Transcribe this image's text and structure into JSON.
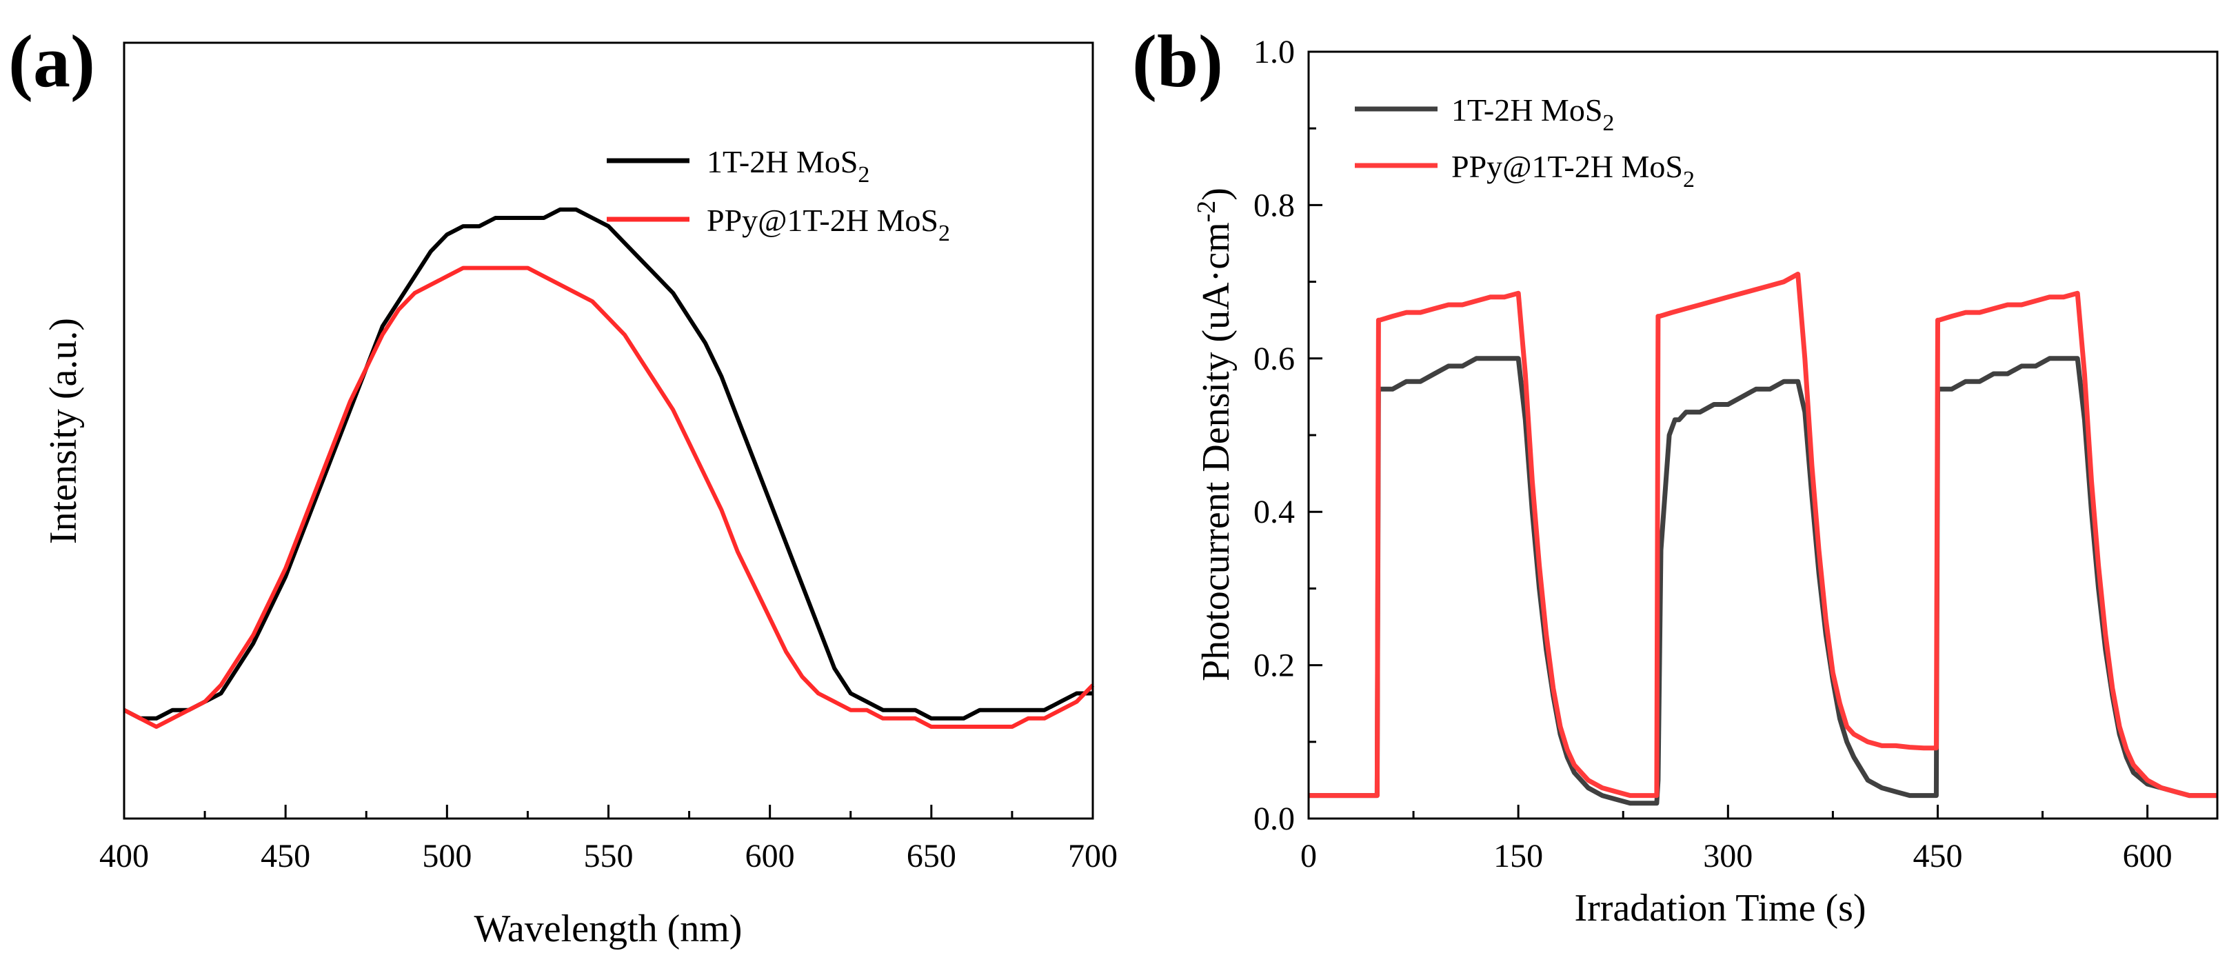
{
  "chart_data": [
    {
      "panel": "(a)",
      "type": "line",
      "xlabel": "Wavelength (nm)",
      "ylabel": "Intensity (a.u.)",
      "xlim": [
        400,
        700
      ],
      "ylim": [
        0,
        1
      ],
      "x_ticks": [
        400,
        450,
        500,
        550,
        600,
        650,
        700
      ],
      "y_ticks_shown": false,
      "grid": false,
      "legend_position": "top-right",
      "series": [
        {
          "name": "1T-2H MoS",
          "name_sub": "2",
          "color": "#000000",
          "x": [
            400,
            405,
            410,
            415,
            420,
            425,
            430,
            435,
            440,
            445,
            450,
            455,
            460,
            465,
            470,
            475,
            480,
            485,
            490,
            495,
            500,
            505,
            510,
            515,
            520,
            525,
            530,
            535,
            540,
            545,
            550,
            555,
            560,
            565,
            570,
            575,
            580,
            585,
            590,
            595,
            600,
            605,
            610,
            615,
            620,
            625,
            630,
            635,
            640,
            645,
            650,
            655,
            660,
            665,
            670,
            675,
            680,
            685,
            690,
            695,
            700
          ],
          "y": [
            0.13,
            0.12,
            0.12,
            0.13,
            0.13,
            0.14,
            0.15,
            0.18,
            0.21,
            0.25,
            0.29,
            0.34,
            0.39,
            0.44,
            0.49,
            0.54,
            0.59,
            0.62,
            0.65,
            0.68,
            0.7,
            0.71,
            0.71,
            0.72,
            0.72,
            0.72,
            0.72,
            0.73,
            0.73,
            0.72,
            0.71,
            0.69,
            0.67,
            0.65,
            0.63,
            0.6,
            0.57,
            0.53,
            0.48,
            0.43,
            0.38,
            0.33,
            0.28,
            0.23,
            0.18,
            0.15,
            0.14,
            0.13,
            0.13,
            0.13,
            0.12,
            0.12,
            0.12,
            0.13,
            0.13,
            0.13,
            0.13,
            0.13,
            0.14,
            0.15,
            0.15
          ]
        },
        {
          "name": "PPy@1T-2H MoS",
          "name_sub": "2",
          "color": "#ff2a2a",
          "x": [
            400,
            405,
            410,
            415,
            420,
            425,
            430,
            435,
            440,
            445,
            450,
            455,
            460,
            465,
            470,
            475,
            480,
            485,
            490,
            495,
            500,
            505,
            510,
            515,
            520,
            525,
            530,
            535,
            540,
            545,
            550,
            555,
            560,
            565,
            570,
            575,
            580,
            585,
            590,
            595,
            600,
            605,
            610,
            615,
            620,
            625,
            630,
            635,
            640,
            645,
            650,
            655,
            660,
            665,
            670,
            675,
            680,
            685,
            690,
            695,
            700
          ],
          "y": [
            0.13,
            0.12,
            0.11,
            0.12,
            0.13,
            0.14,
            0.16,
            0.19,
            0.22,
            0.26,
            0.3,
            0.35,
            0.4,
            0.45,
            0.5,
            0.54,
            0.58,
            0.61,
            0.63,
            0.64,
            0.65,
            0.66,
            0.66,
            0.66,
            0.66,
            0.66,
            0.65,
            0.64,
            0.63,
            0.62,
            0.6,
            0.58,
            0.55,
            0.52,
            0.49,
            0.45,
            0.41,
            0.37,
            0.32,
            0.28,
            0.24,
            0.2,
            0.17,
            0.15,
            0.14,
            0.13,
            0.13,
            0.12,
            0.12,
            0.12,
            0.11,
            0.11,
            0.11,
            0.11,
            0.11,
            0.11,
            0.12,
            0.12,
            0.13,
            0.14,
            0.16
          ]
        }
      ]
    },
    {
      "panel": "(b)",
      "type": "line",
      "xlabel": "Irradation Time (s)",
      "ylabel_main": "Photocurrent Density (uA·cm",
      "ylabel_sup": "-2",
      "ylabel_end": ")",
      "xlim": [
        0,
        650
      ],
      "ylim": [
        0,
        1.0
      ],
      "x_ticks": [
        0,
        150,
        300,
        450,
        600
      ],
      "y_ticks": [
        0.0,
        0.2,
        0.4,
        0.6,
        0.8,
        1.0
      ],
      "y_tick_labels": [
        "0.0",
        "0.2",
        "0.4",
        "0.6",
        "0.8",
        "1.0"
      ],
      "grid": false,
      "legend_position": "top-left",
      "series": [
        {
          "name": "1T-2H MoS",
          "name_sub": "2",
          "color": "#404040",
          "x": [
            0,
            49,
            50,
            51,
            55,
            60,
            70,
            80,
            90,
            100,
            110,
            120,
            130,
            140,
            150,
            155,
            160,
            165,
            170,
            175,
            180,
            185,
            190,
            200,
            210,
            220,
            230,
            240,
            249,
            250,
            252,
            258,
            262,
            265,
            270,
            275,
            280,
            290,
            300,
            310,
            320,
            330,
            340,
            350,
            355,
            360,
            365,
            370,
            375,
            380,
            385,
            390,
            400,
            410,
            420,
            430,
            440,
            449,
            450,
            451,
            455,
            460,
            470,
            480,
            490,
            500,
            510,
            520,
            530,
            540,
            550,
            555,
            560,
            565,
            570,
            575,
            580,
            585,
            590,
            600,
            610,
            620,
            630,
            640,
            650
          ],
          "y": [
            0.03,
            0.03,
            0.56,
            0.56,
            0.56,
            0.56,
            0.57,
            0.57,
            0.58,
            0.59,
            0.59,
            0.6,
            0.6,
            0.6,
            0.6,
            0.52,
            0.4,
            0.3,
            0.22,
            0.16,
            0.11,
            0.08,
            0.06,
            0.04,
            0.03,
            0.025,
            0.02,
            0.02,
            0.02,
            0.05,
            0.35,
            0.5,
            0.52,
            0.52,
            0.53,
            0.53,
            0.53,
            0.54,
            0.54,
            0.55,
            0.56,
            0.56,
            0.57,
            0.57,
            0.53,
            0.42,
            0.32,
            0.24,
            0.18,
            0.13,
            0.1,
            0.08,
            0.05,
            0.04,
            0.035,
            0.03,
            0.03,
            0.03,
            0.56,
            0.56,
            0.56,
            0.56,
            0.57,
            0.57,
            0.58,
            0.58,
            0.59,
            0.59,
            0.6,
            0.6,
            0.6,
            0.52,
            0.4,
            0.3,
            0.22,
            0.16,
            0.11,
            0.08,
            0.06,
            0.045,
            0.04,
            0.035,
            0.03,
            0.03,
            0.03
          ]
        },
        {
          "name": "PPy@1T-2H MoS",
          "name_sub": "2",
          "color": "#ff3b3b",
          "x": [
            0,
            49,
            50,
            51,
            60,
            70,
            80,
            90,
            100,
            110,
            120,
            130,
            140,
            150,
            155,
            160,
            165,
            170,
            175,
            180,
            185,
            190,
            200,
            210,
            220,
            230,
            240,
            249,
            250,
            251,
            260,
            270,
            280,
            290,
            300,
            310,
            320,
            330,
            340,
            350,
            355,
            360,
            365,
            370,
            375,
            380,
            385,
            390,
            400,
            410,
            420,
            430,
            440,
            449,
            450,
            451,
            460,
            470,
            480,
            490,
            500,
            510,
            520,
            530,
            540,
            550,
            555,
            560,
            565,
            570,
            575,
            580,
            585,
            590,
            600,
            610,
            620,
            630,
            640,
            650
          ],
          "y": [
            0.03,
            0.03,
            0.65,
            0.65,
            0.655,
            0.66,
            0.66,
            0.665,
            0.67,
            0.67,
            0.675,
            0.68,
            0.68,
            0.685,
            0.58,
            0.44,
            0.33,
            0.24,
            0.17,
            0.12,
            0.09,
            0.07,
            0.05,
            0.04,
            0.035,
            0.03,
            0.03,
            0.03,
            0.655,
            0.655,
            0.66,
            0.665,
            0.67,
            0.675,
            0.68,
            0.685,
            0.69,
            0.695,
            0.7,
            0.71,
            0.6,
            0.46,
            0.35,
            0.26,
            0.19,
            0.15,
            0.12,
            0.11,
            0.1,
            0.095,
            0.095,
            0.093,
            0.092,
            0.092,
            0.65,
            0.65,
            0.655,
            0.66,
            0.66,
            0.665,
            0.67,
            0.67,
            0.675,
            0.68,
            0.68,
            0.685,
            0.58,
            0.44,
            0.33,
            0.24,
            0.17,
            0.12,
            0.09,
            0.07,
            0.05,
            0.04,
            0.035,
            0.03,
            0.03,
            0.03
          ]
        }
      ]
    }
  ]
}
